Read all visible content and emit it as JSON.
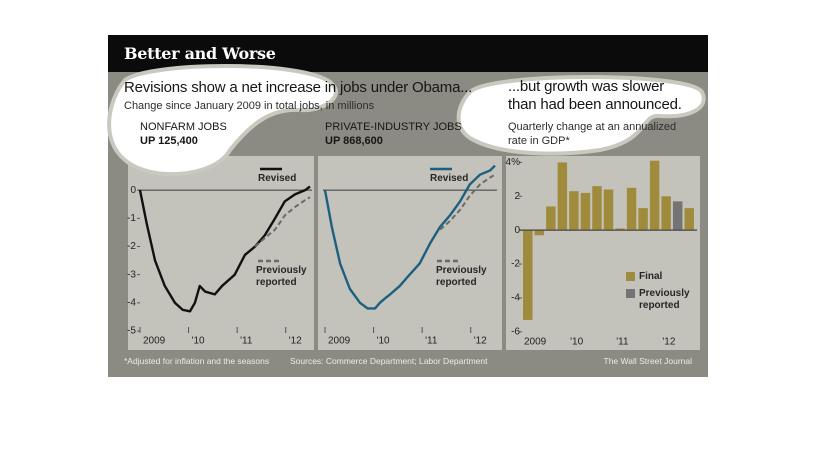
{
  "header": {
    "title": "Better and Worse",
    "headline": "Revisions show a net increase in jobs under Obama...",
    "subtitle": "Change since January 2009 in total jobs, in millions"
  },
  "footer": {
    "note": "*Adjusted for inflation and the seasons",
    "sources": "Sources: Commerce Department; Labor Department",
    "credit": "The Wall Street Journal"
  },
  "chart_data": [
    {
      "type": "line",
      "title": "NONFARM JOBS",
      "subtitle": "UP 125,400",
      "x": [
        2009.0,
        2009.14,
        2009.31,
        2009.51,
        2009.72,
        2009.88,
        2010.03,
        2010.13,
        2010.23,
        2010.34,
        2010.54,
        2010.69,
        2010.95,
        2011.16,
        2011.37,
        2011.57,
        2011.78,
        2011.98,
        2012.19,
        2012.4,
        2012.5
      ],
      "series": [
        {
          "name": "Revised",
          "color": "#111111",
          "style": "solid",
          "values": [
            0,
            -1.2,
            -2.5,
            -3.4,
            -4.0,
            -4.25,
            -4.3,
            -4.0,
            -3.4,
            -3.6,
            -3.7,
            -3.4,
            -3.0,
            -2.3,
            -2.0,
            -1.6,
            -1.0,
            -0.4,
            -0.15,
            0.0,
            0.13
          ]
        },
        {
          "name": "Previously reported",
          "color": "#6a6a6a",
          "style": "dashed",
          "values": [
            null,
            null,
            null,
            null,
            null,
            null,
            null,
            null,
            null,
            null,
            null,
            null,
            null,
            null,
            -2.0,
            -1.7,
            -1.4,
            -0.9,
            -0.6,
            -0.35,
            -0.25
          ]
        }
      ],
      "xlim": [
        2009,
        2012.5
      ],
      "xticks": [
        2009,
        {
          "value": 2010,
          "label": "'10"
        },
        {
          "value": 2011,
          "label": "'11"
        },
        {
          "value": 2012,
          "label": "'12"
        }
      ],
      "ylim": [
        -5,
        1
      ],
      "yticks": [
        0,
        -1,
        -2,
        -3,
        -4,
        -5
      ]
    },
    {
      "type": "line",
      "title": "PRIVATE-INDUSTRY JOBS",
      "subtitle": "UP 868,600",
      "x": [
        2009.0,
        2009.14,
        2009.31,
        2009.51,
        2009.72,
        2009.88,
        2010.03,
        2010.13,
        2010.23,
        2010.34,
        2010.54,
        2010.69,
        2010.95,
        2011.16,
        2011.37,
        2011.57,
        2011.78,
        2011.98,
        2012.19,
        2012.4,
        2012.5
      ],
      "series": [
        {
          "name": "Revised",
          "color": "#1d5f7f",
          "style": "solid",
          "values": [
            0,
            -1.3,
            -2.6,
            -3.5,
            -4.0,
            -4.2,
            -4.2,
            -4.0,
            -3.85,
            -3.7,
            -3.4,
            -3.1,
            -2.6,
            -1.9,
            -1.3,
            -0.9,
            -0.4,
            0.2,
            0.55,
            0.7,
            0.87
          ]
        },
        {
          "name": "Previously reported",
          "color": "#6a6a6a",
          "style": "dashed",
          "values": [
            null,
            null,
            null,
            null,
            null,
            null,
            null,
            null,
            null,
            null,
            null,
            null,
            null,
            null,
            -1.4,
            -1.1,
            -0.7,
            -0.2,
            0.2,
            0.45,
            0.55
          ]
        }
      ],
      "xlim": [
        2009,
        2012.5
      ],
      "xticks": [
        2009,
        {
          "value": 2010,
          "label": "'10"
        },
        {
          "value": 2011,
          "label": "'11"
        },
        {
          "value": 2012,
          "label": "'12"
        }
      ],
      "ylim": [
        -5,
        1
      ]
    },
    {
      "type": "bar",
      "title": "...but growth was slower than had been announced.",
      "subtitle": "Quarterly change at an annualized rate in GDP*",
      "categories": [
        "2009",
        null,
        null,
        null,
        "'10",
        null,
        null,
        null,
        "'11",
        null,
        null,
        null,
        "'12",
        null
      ],
      "series": [
        {
          "name": "Final",
          "color": "#a08b3d",
          "values": [
            -5.3,
            -0.3,
            1.4,
            4.0,
            2.3,
            2.2,
            2.6,
            2.4,
            0.1,
            2.5,
            1.3,
            4.1,
            2.0,
            1.3
          ]
        },
        {
          "name": "Previously reported",
          "color": "#747474",
          "values": [
            null,
            null,
            null,
            null,
            null,
            null,
            null,
            null,
            null,
            null,
            null,
            null,
            null,
            1.7
          ]
        }
      ],
      "ylim": [
        -6,
        4
      ],
      "yticks": [
        {
          "value": 4,
          "label": "4%"
        },
        2,
        0,
        -2,
        -4,
        -6
      ]
    }
  ]
}
